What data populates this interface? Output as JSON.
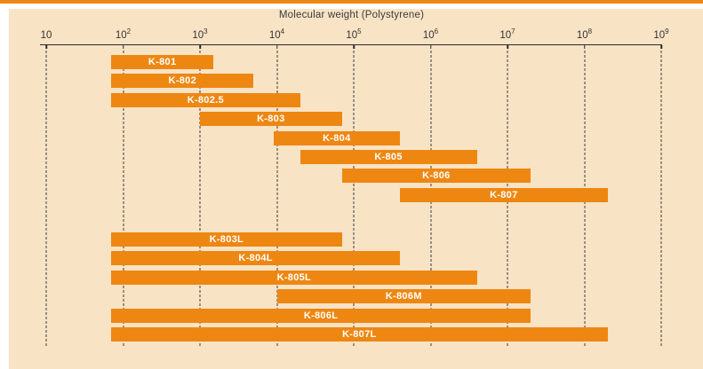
{
  "page": {
    "panel_color": "#F9E3C5",
    "accent_color": "#EE8712",
    "grid_color": "#3b3b3b",
    "text_color": "#3b3b3b",
    "bar_label_color": "#ffffff"
  },
  "chart_data": {
    "type": "bar",
    "orientation": "horizontal-range",
    "title": "Molecular weight (Polystyrene)",
    "x_scale": "log10",
    "x_range": [
      10,
      1000000000
    ],
    "grid": "dashed-vertical",
    "x_ticks": [
      {
        "base": "10",
        "exp": "",
        "value": 10
      },
      {
        "base": "10",
        "exp": "2",
        "value": 100
      },
      {
        "base": "10",
        "exp": "3",
        "value": 1000
      },
      {
        "base": "10",
        "exp": "4",
        "value": 10000
      },
      {
        "base": "10",
        "exp": "5",
        "value": 100000
      },
      {
        "base": "10",
        "exp": "6",
        "value": 1000000
      },
      {
        "base": "10",
        "exp": "7",
        "value": 10000000
      },
      {
        "base": "10",
        "exp": "8",
        "value": 100000000
      },
      {
        "base": "10",
        "exp": "9",
        "value": 1000000000
      }
    ],
    "bars": [
      {
        "label": "K-801",
        "min": 70,
        "max": 1500,
        "group": 1
      },
      {
        "label": "K-802",
        "min": 70,
        "max": 5000,
        "group": 1
      },
      {
        "label": "K-802.5",
        "min": 70,
        "max": 20000,
        "group": 1
      },
      {
        "label": "K-803",
        "min": 1000,
        "max": 70000,
        "group": 1
      },
      {
        "label": "K-804",
        "min": 9000,
        "max": 400000,
        "group": 1
      },
      {
        "label": "K-805",
        "min": 20000,
        "max": 4000000,
        "group": 1
      },
      {
        "label": "K-806",
        "min": 70000,
        "max": 20000000,
        "group": 1
      },
      {
        "label": "K-807",
        "min": 400000,
        "max": 200000000,
        "group": 1
      },
      {
        "label": "K-803L",
        "min": 70,
        "max": 70000,
        "group": 2
      },
      {
        "label": "K-804L",
        "min": 70,
        "max": 400000,
        "group": 2
      },
      {
        "label": "K-805L",
        "min": 70,
        "max": 4000000,
        "group": 2
      },
      {
        "label": "K-806M",
        "min": 10000,
        "max": 20000000,
        "group": 2
      },
      {
        "label": "K-806L",
        "min": 70,
        "max": 20000000,
        "group": 2
      },
      {
        "label": "K-807L",
        "min": 70,
        "max": 200000000,
        "group": 2
      }
    ]
  }
}
